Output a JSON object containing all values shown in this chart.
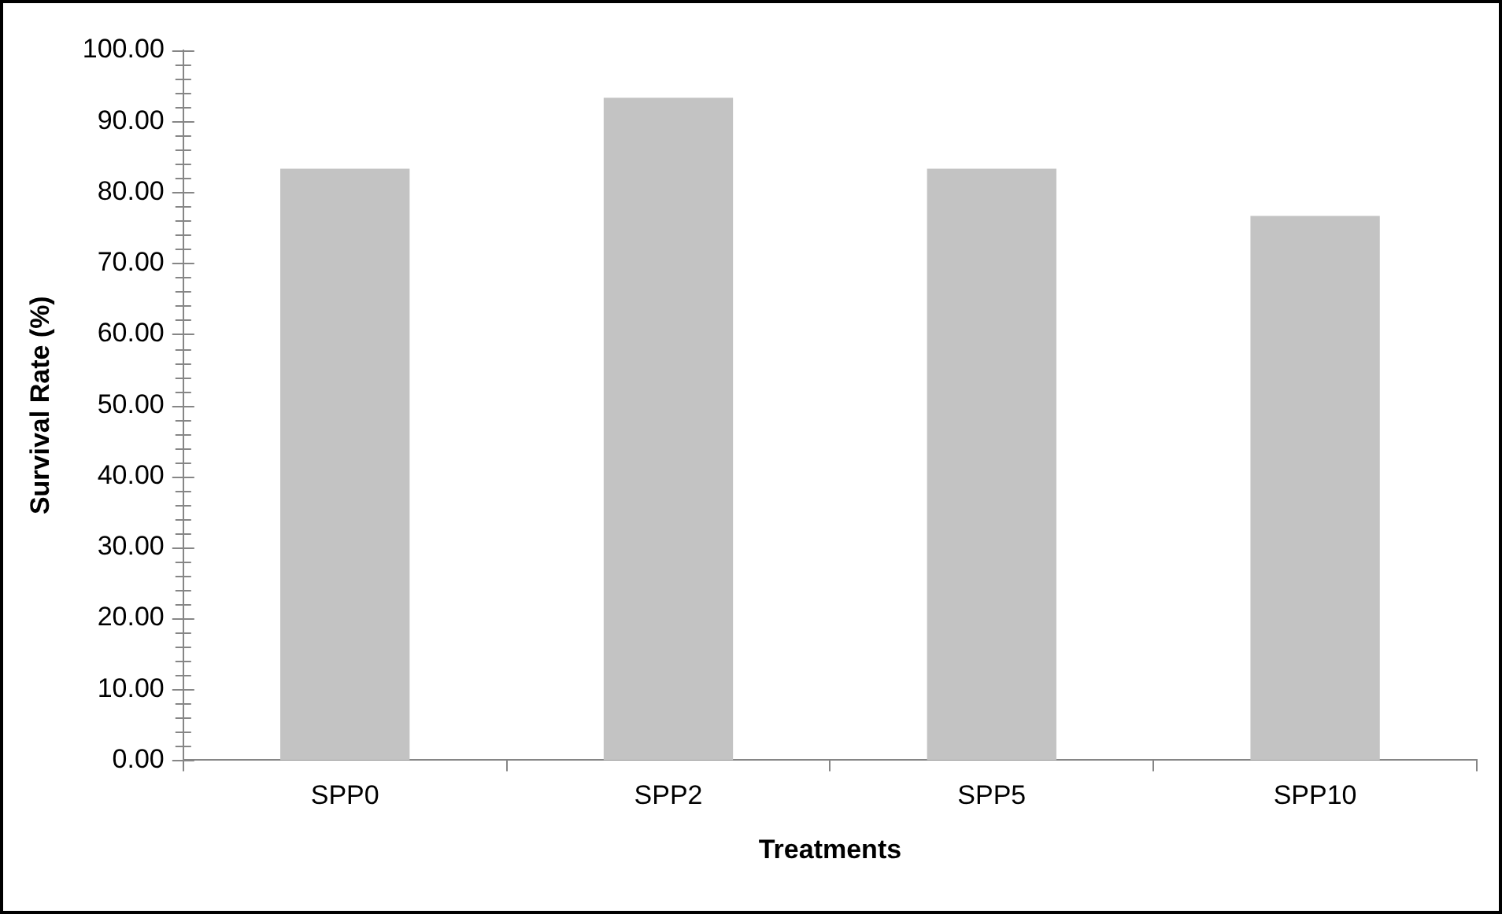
{
  "chart_data": {
    "type": "bar",
    "xlabel": "Treatments",
    "ylabel": "Survival Rate (%)",
    "categories": [
      "SPP0",
      "SPP2",
      "SPP5",
      "SPP10"
    ],
    "values": [
      83.33,
      93.33,
      83.33,
      76.67
    ],
    "color": "#c3c3c3",
    "ylim": [
      0,
      100
    ],
    "yticks": [
      {
        "value": 0,
        "label": "0.00"
      },
      {
        "value": 2,
        "label": null
      },
      {
        "value": 4,
        "label": null
      },
      {
        "value": 6,
        "label": null
      },
      {
        "value": 8,
        "label": null
      },
      {
        "value": 10,
        "label": "10.00"
      },
      {
        "value": 12,
        "label": null
      },
      {
        "value": 14,
        "label": null
      },
      {
        "value": 16,
        "label": null
      },
      {
        "value": 18,
        "label": null
      },
      {
        "value": 20,
        "label": "20.00"
      },
      {
        "value": 22,
        "label": null
      },
      {
        "value": 24,
        "label": null
      },
      {
        "value": 26,
        "label": null
      },
      {
        "value": 28,
        "label": null
      },
      {
        "value": 30,
        "label": "30.00"
      },
      {
        "value": 32,
        "label": null
      },
      {
        "value": 34,
        "label": null
      },
      {
        "value": 36,
        "label": null
      },
      {
        "value": 38,
        "label": null
      },
      {
        "value": 40,
        "label": "40.00"
      },
      {
        "value": 42,
        "label": null
      },
      {
        "value": 44,
        "label": null
      },
      {
        "value": 46,
        "label": null
      },
      {
        "value": 48,
        "label": null
      },
      {
        "value": 50,
        "label": "50.00"
      },
      {
        "value": 52,
        "label": null
      },
      {
        "value": 54,
        "label": null
      },
      {
        "value": 56,
        "label": null
      },
      {
        "value": 58,
        "label": null
      },
      {
        "value": 60,
        "label": "60.00"
      },
      {
        "value": 62,
        "label": null
      },
      {
        "value": 64,
        "label": null
      },
      {
        "value": 66,
        "label": null
      },
      {
        "value": 68,
        "label": null
      },
      {
        "value": 70,
        "label": "70.00"
      },
      {
        "value": 72,
        "label": null
      },
      {
        "value": 74,
        "label": null
      },
      {
        "value": 76,
        "label": null
      },
      {
        "value": 78,
        "label": null
      },
      {
        "value": 80,
        "label": "80.00"
      },
      {
        "value": 82,
        "label": null
      },
      {
        "value": 84,
        "label": null
      },
      {
        "value": 86,
        "label": null
      },
      {
        "value": 88,
        "label": null
      },
      {
        "value": 90,
        "label": "90.00"
      },
      {
        "value": 92,
        "label": null
      },
      {
        "value": 94,
        "label": null
      },
      {
        "value": 96,
        "label": null
      },
      {
        "value": 98,
        "label": null
      },
      {
        "value": 100,
        "label": "100.00"
      }
    ],
    "grid": false,
    "legend": false
  }
}
